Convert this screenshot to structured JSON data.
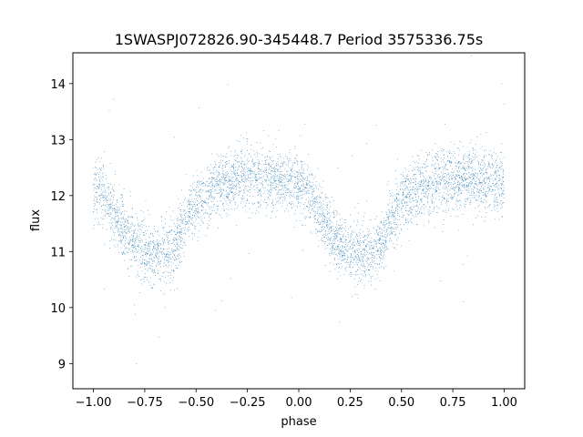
{
  "chart_data": {
    "type": "scatter",
    "title": "1SWASPJ072826.90-345448.7 Period 3575336.75s",
    "xlabel": "phase",
    "ylabel": "flux",
    "xlim": [
      -1.1,
      1.1
    ],
    "ylim": [
      8.55,
      14.55
    ],
    "xticks": [
      -1.0,
      -0.75,
      -0.5,
      -0.25,
      0.0,
      0.25,
      0.5,
      0.75,
      1.0
    ],
    "xtick_labels": [
      "−1.00",
      "−0.75",
      "−0.50",
      "−0.25",
      "0.00",
      "0.25",
      "0.50",
      "0.75",
      "1.00"
    ],
    "yticks": [
      9,
      10,
      11,
      12,
      13,
      14
    ],
    "ytick_labels": [
      "9",
      "10",
      "11",
      "12",
      "13",
      "14"
    ],
    "grid": false,
    "marker_color": "#1f77b4",
    "series": [
      {
        "curve": {
          "phase": [
            0.0,
            0.05,
            0.1,
            0.15,
            0.2,
            0.25,
            0.3,
            0.35,
            0.4,
            0.45,
            0.5,
            0.55,
            0.6,
            0.65,
            0.7,
            0.75,
            0.8,
            0.85,
            0.9,
            0.95,
            1.0
          ],
          "flux": [
            12.2,
            12.0,
            11.7,
            11.4,
            11.15,
            11.0,
            10.95,
            10.98,
            11.1,
            11.6,
            11.9,
            12.0,
            12.15,
            12.2,
            12.3,
            12.3,
            12.3,
            12.3,
            12.3,
            12.25,
            12.2
          ]
        },
        "scatter": 0.28,
        "points_per_cycle": 2600,
        "outlier_fraction": 0.015
      }
    ]
  }
}
